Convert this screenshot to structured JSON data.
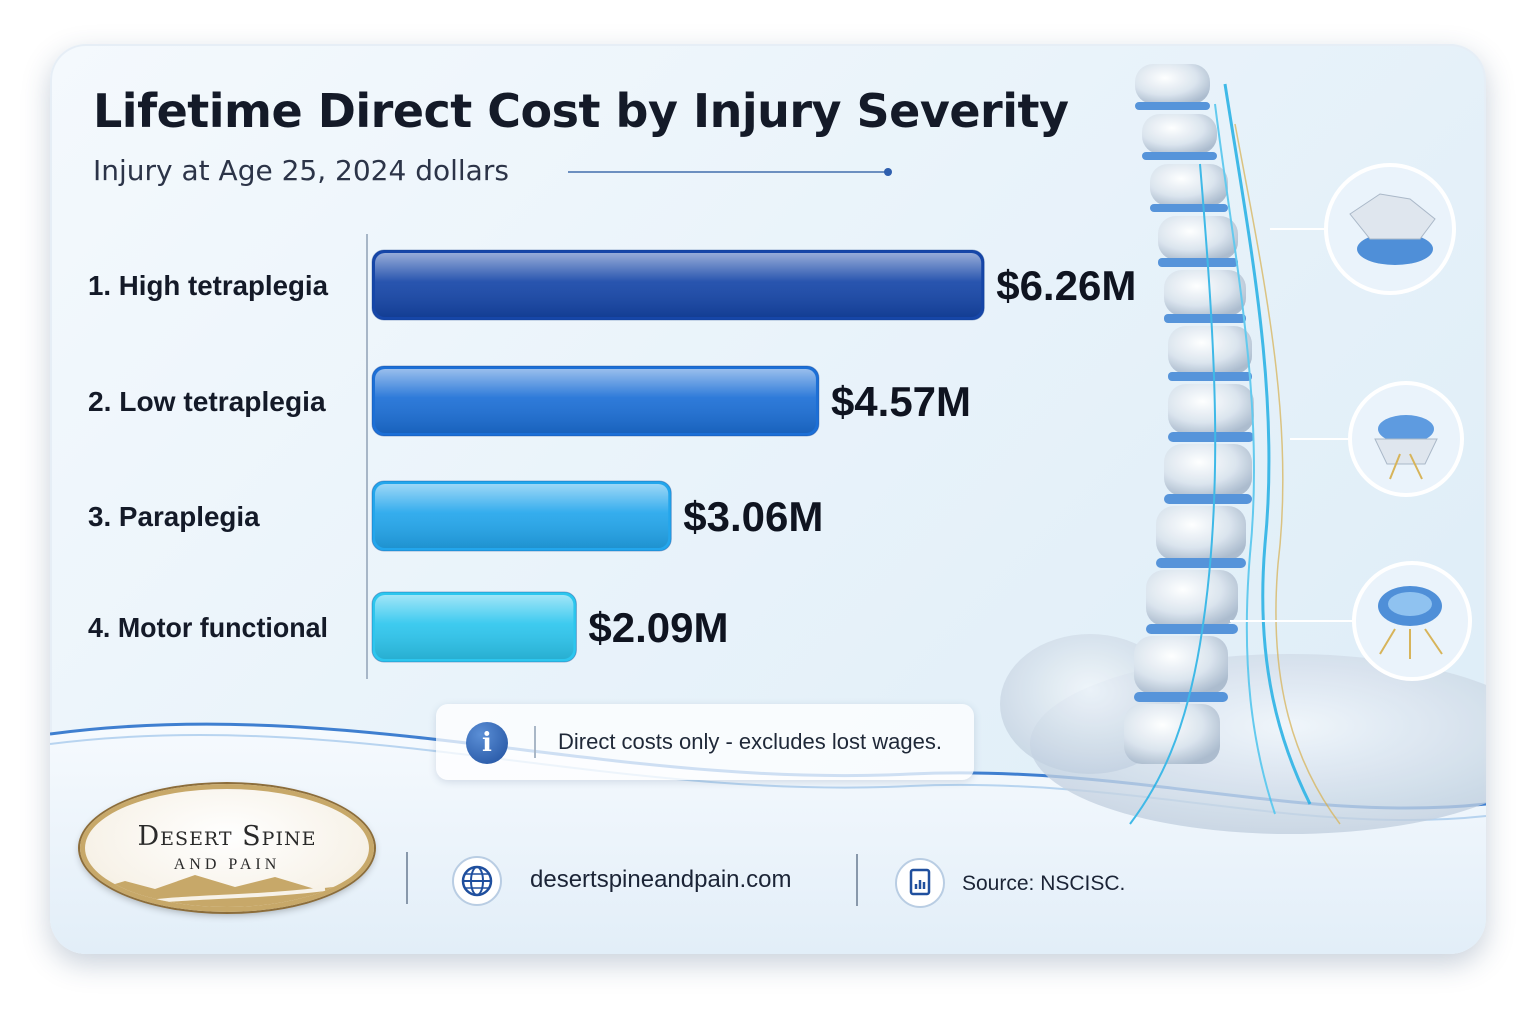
{
  "chart_data": {
    "type": "bar",
    "orientation": "horizontal",
    "title": "Lifetime Direct Cost by Injury Severity",
    "subtitle": "Injury at Age 25, 2024 dollars",
    "categories": [
      "1. High tetraplegia",
      "2. Low tetraplegia",
      "3. Paraplegia",
      "4. Motor functional"
    ],
    "values": [
      6.26,
      4.57,
      3.06,
      2.09
    ],
    "value_labels": [
      "$6.26M",
      "$4.57M",
      "$3.06M",
      "$2.09M"
    ],
    "unit": "$M",
    "bar_colors": [
      "#1646a8",
      "#1c6fd6",
      "#23a6ec",
      "#2dc6ee"
    ],
    "grid": false,
    "legend": "none"
  },
  "note": {
    "icon": "info-icon",
    "text": "Direct costs only - excludes lost wages."
  },
  "footer": {
    "logo": {
      "line1": "Desert Spine",
      "line2": "AND PAIN"
    },
    "website": {
      "icon": "globe-icon",
      "text": "desertspineandpain.com"
    },
    "source": {
      "icon": "document-chart-icon",
      "text": "Source: NSCISC."
    }
  },
  "colors": {
    "title": "#141a28",
    "accent": "#1f4f9e",
    "logo_gold": "#c7a869",
    "background": "#e9f3fa"
  }
}
